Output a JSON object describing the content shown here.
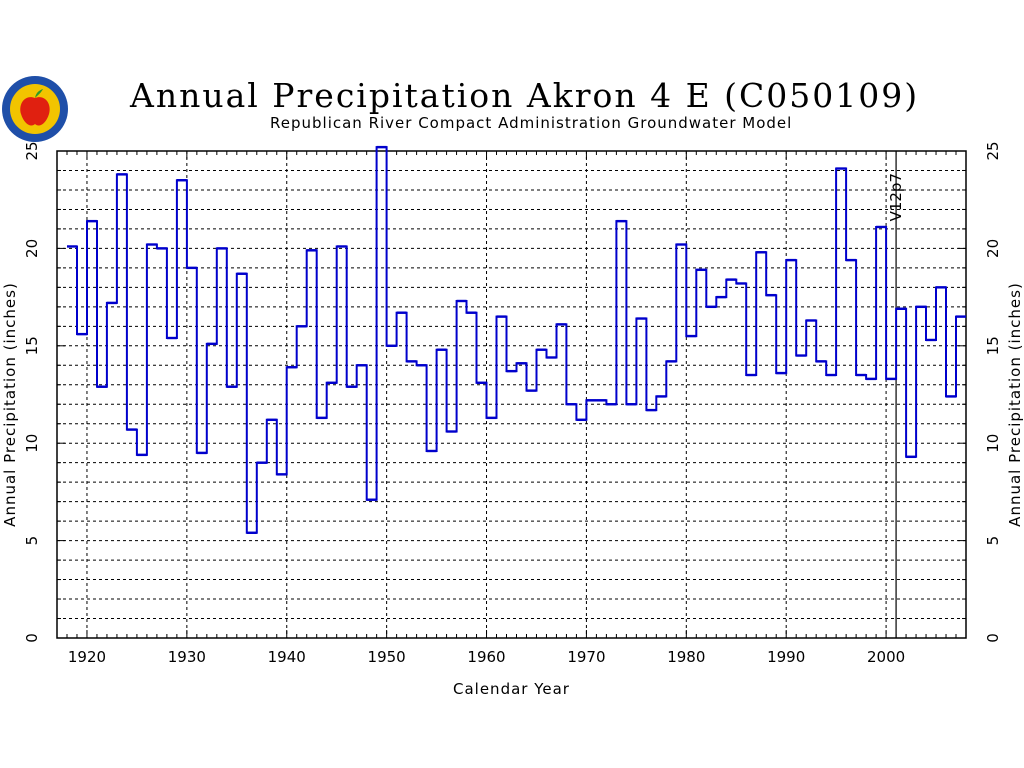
{
  "title": "Annual Precipitation Akron 4 E (C050109)",
  "subtitle": "Republican River Compact Administration Groundwater Model",
  "colors": {
    "series": "#0000cc",
    "grid": "#000000",
    "logo_ring": "#1f4fa8",
    "logo_fill": "#f2c400",
    "apple": "#e02010"
  },
  "chart_data": {
    "type": "line",
    "step": true,
    "xlabel": "Calendar Year",
    "ylabel": "Annual Precipitation (inches)",
    "ylabel_right": "Annual Precipitation (inches)",
    "xlim": [
      1917,
      2008
    ],
    "ylim": [
      0,
      25
    ],
    "xticks": [
      1920,
      1930,
      1940,
      1950,
      1960,
      1970,
      1980,
      1990,
      2000
    ],
    "yticks": [
      0,
      5,
      10,
      15,
      20,
      25
    ],
    "grid": true,
    "annotation": {
      "text": "V12p7",
      "x": 2001
    },
    "series": [
      {
        "x": [
          1918,
          1919,
          1920,
          1921,
          1922,
          1923,
          1924,
          1925,
          1926,
          1927,
          1928,
          1929,
          1930,
          1931,
          1932,
          1933,
          1934,
          1935,
          1936,
          1937,
          1938,
          1939,
          1940,
          1941,
          1942,
          1943,
          1944,
          1945,
          1946,
          1947,
          1948,
          1949,
          1950,
          1951,
          1952,
          1953,
          1954,
          1955,
          1956,
          1957,
          1958,
          1959,
          1960,
          1961,
          1962,
          1963,
          1964,
          1965,
          1966,
          1967,
          1968,
          1969,
          1970,
          1971,
          1972,
          1973,
          1974,
          1975,
          1976,
          1977,
          1978,
          1979,
          1980,
          1981,
          1982,
          1983,
          1984,
          1985,
          1986,
          1987,
          1988,
          1989,
          1990,
          1991,
          1992,
          1993,
          1994,
          1995,
          1996,
          1997,
          1998,
          1999,
          2000,
          2001,
          2002,
          2003,
          2004,
          2005,
          2006,
          2007
        ],
        "values": [
          20.1,
          15.6,
          21.4,
          12.9,
          17.2,
          23.8,
          10.7,
          9.4,
          20.2,
          20.0,
          15.4,
          23.5,
          19.0,
          9.5,
          15.1,
          20.0,
          12.9,
          18.7,
          5.4,
          9.0,
          11.2,
          8.4,
          13.9,
          16.0,
          19.9,
          11.3,
          13.1,
          20.1,
          12.9,
          14.0,
          7.1,
          25.2,
          15.0,
          16.7,
          14.2,
          14.0,
          9.6,
          14.8,
          10.6,
          17.3,
          16.7,
          13.1,
          11.3,
          16.5,
          13.7,
          14.1,
          12.7,
          14.8,
          14.4,
          16.1,
          12.0,
          11.2,
          12.2,
          12.2,
          12.0,
          21.4,
          12.0,
          16.4,
          11.7,
          12.4,
          14.2,
          20.2,
          15.5,
          18.9,
          17.0,
          17.5,
          18.4,
          18.2,
          13.5,
          19.8,
          17.6,
          13.6,
          19.4,
          14.5,
          16.3,
          14.2,
          13.5,
          24.1,
          19.4,
          13.5,
          13.3,
          21.1,
          13.3,
          16.9,
          9.3,
          17.0,
          15.3,
          18.0,
          12.4,
          16.5
        ]
      }
    ]
  }
}
